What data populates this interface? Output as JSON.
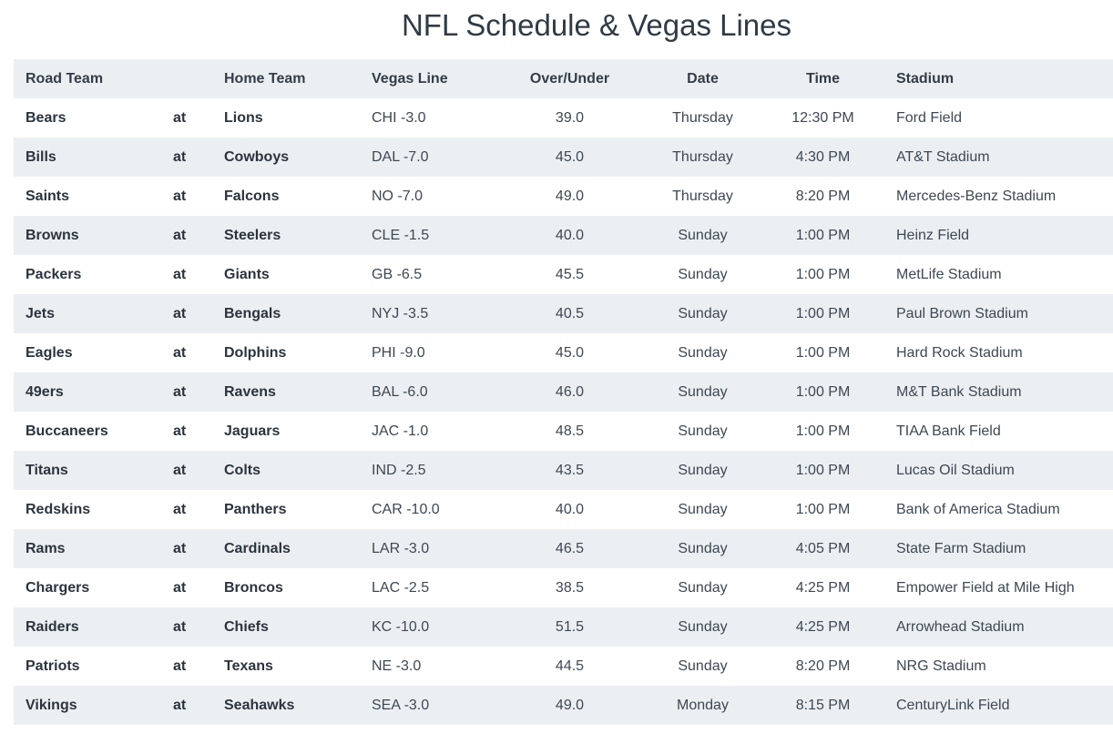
{
  "page": {
    "title": "NFL Schedule & Vegas Lines"
  },
  "table": {
    "headers": {
      "road": "Road Team",
      "at": "",
      "home": "Home Team",
      "line": "Vegas Line",
      "ou": "Over/Under",
      "date": "Date",
      "time": "Time",
      "stadium": "Stadium"
    },
    "rows": [
      {
        "road": "Bears",
        "at": "at",
        "home": "Lions",
        "line": "CHI -3.0",
        "ou": "39.0",
        "date": "Thursday",
        "time": "12:30 PM",
        "stadium": "Ford Field"
      },
      {
        "road": "Bills",
        "at": "at",
        "home": "Cowboys",
        "line": "DAL -7.0",
        "ou": "45.0",
        "date": "Thursday",
        "time": "4:30 PM",
        "stadium": "AT&T Stadium"
      },
      {
        "road": "Saints",
        "at": "at",
        "home": "Falcons",
        "line": "NO -7.0",
        "ou": "49.0",
        "date": "Thursday",
        "time": "8:20 PM",
        "stadium": "Mercedes-Benz Stadium"
      },
      {
        "road": "Browns",
        "at": "at",
        "home": "Steelers",
        "line": "CLE -1.5",
        "ou": "40.0",
        "date": "Sunday",
        "time": "1:00 PM",
        "stadium": "Heinz Field"
      },
      {
        "road": "Packers",
        "at": "at",
        "home": "Giants",
        "line": "GB -6.5",
        "ou": "45.5",
        "date": "Sunday",
        "time": "1:00 PM",
        "stadium": "MetLife Stadium"
      },
      {
        "road": "Jets",
        "at": "at",
        "home": "Bengals",
        "line": "NYJ -3.5",
        "ou": "40.5",
        "date": "Sunday",
        "time": "1:00 PM",
        "stadium": "Paul Brown Stadium"
      },
      {
        "road": "Eagles",
        "at": "at",
        "home": "Dolphins",
        "line": "PHI -9.0",
        "ou": "45.0",
        "date": "Sunday",
        "time": "1:00 PM",
        "stadium": "Hard Rock Stadium"
      },
      {
        "road": "49ers",
        "at": "at",
        "home": "Ravens",
        "line": "BAL -6.0",
        "ou": "46.0",
        "date": "Sunday",
        "time": "1:00 PM",
        "stadium": "M&T Bank Stadium"
      },
      {
        "road": "Buccaneers",
        "at": "at",
        "home": "Jaguars",
        "line": "JAC -1.0",
        "ou": "48.5",
        "date": "Sunday",
        "time": "1:00 PM",
        "stadium": "TIAA Bank Field"
      },
      {
        "road": "Titans",
        "at": "at",
        "home": "Colts",
        "line": "IND -2.5",
        "ou": "43.5",
        "date": "Sunday",
        "time": "1:00 PM",
        "stadium": "Lucas Oil Stadium"
      },
      {
        "road": "Redskins",
        "at": "at",
        "home": "Panthers",
        "line": "CAR -10.0",
        "ou": "40.0",
        "date": "Sunday",
        "time": "1:00 PM",
        "stadium": "Bank of America Stadium"
      },
      {
        "road": "Rams",
        "at": "at",
        "home": "Cardinals",
        "line": "LAR -3.0",
        "ou": "46.5",
        "date": "Sunday",
        "time": "4:05 PM",
        "stadium": "State Farm Stadium"
      },
      {
        "road": "Chargers",
        "at": "at",
        "home": "Broncos",
        "line": "LAC -2.5",
        "ou": "38.5",
        "date": "Sunday",
        "time": "4:25 PM",
        "stadium": "Empower Field at Mile High"
      },
      {
        "road": "Raiders",
        "at": "at",
        "home": "Chiefs",
        "line": "KC -10.0",
        "ou": "51.5",
        "date": "Sunday",
        "time": "4:25 PM",
        "stadium": "Arrowhead Stadium"
      },
      {
        "road": "Patriots",
        "at": "at",
        "home": "Texans",
        "line": "NE -3.0",
        "ou": "44.5",
        "date": "Sunday",
        "time": "8:20 PM",
        "stadium": "NRG Stadium"
      },
      {
        "road": "Vikings",
        "at": "at",
        "home": "Seahawks",
        "line": "SEA -3.0",
        "ou": "49.0",
        "date": "Monday",
        "time": "8:15 PM",
        "stadium": "CenturyLink Field"
      }
    ]
  }
}
